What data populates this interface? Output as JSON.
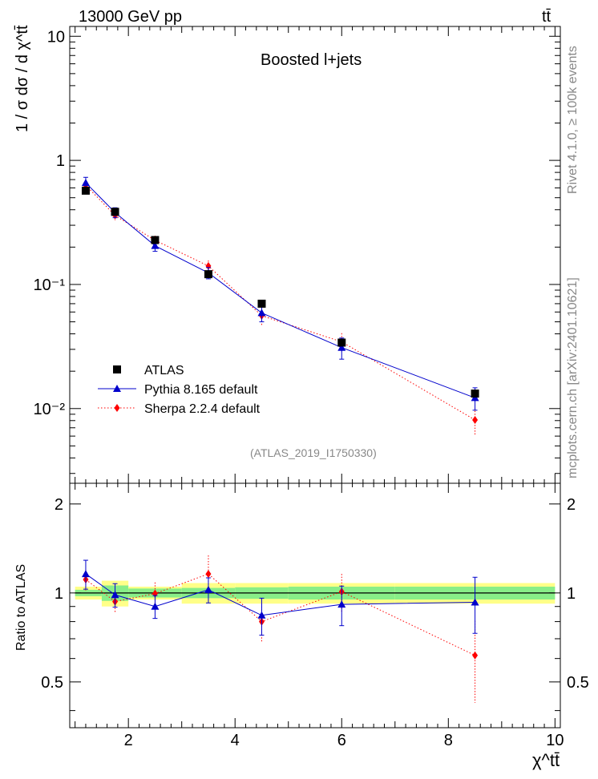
{
  "header": {
    "energy_label": "13000 GeV pp",
    "process_label": "tt̄",
    "rivet_label": "Rivet 4.1.0, ≥ 100k events",
    "mcplots_label": "mcplots.cern.ch [arXiv:2401.10621]",
    "analysis_id": "(ATLAS_2019_I1750330)",
    "plot_title": "Boosted l+jets"
  },
  "chart_data": [
    {
      "type": "scatter",
      "title": "Boosted l+jets",
      "xlabel": "χ^tt̄",
      "ylabel": "1 / σ dσ / d χ^tt̄",
      "xlim": [
        0.9,
        10.1
      ],
      "ylim": [
        0.0025,
        12
      ],
      "yscale": "log",
      "y_tick_labels": [
        "10",
        "1",
        "10⁻¹",
        "10⁻²"
      ],
      "legend": [
        {
          "name": "ATLAS",
          "color": "#000000",
          "marker": "square"
        },
        {
          "name": "Pythia 8.165 default",
          "color": "#0000cc",
          "marker": "triangle"
        },
        {
          "name": "Sherpa 2.2.4 default",
          "color": "#ff0000",
          "marker": "diamond"
        }
      ],
      "legend_position": "bottom-left",
      "series": [
        {
          "name": "ATLAS",
          "x": [
            1.2,
            1.75,
            2.5,
            3.5,
            4.5,
            6.0,
            8.5
          ],
          "y": [
            0.57,
            0.385,
            0.228,
            0.121,
            0.07,
            0.034,
            0.0132
          ],
          "xerr": [
            0.2,
            0.25,
            0.5,
            0.5,
            0.5,
            1.0,
            1.5
          ]
        },
        {
          "name": "Pythia 8.165 default",
          "x": [
            1.2,
            1.75,
            2.5,
            3.5,
            4.5,
            6.0,
            8.5
          ],
          "y": [
            0.66,
            0.38,
            0.205,
            0.124,
            0.059,
            0.031,
            0.0122
          ],
          "yerr": [
            0.07,
            0.035,
            0.02,
            0.013,
            0.009,
            0.006,
            0.0025
          ]
        },
        {
          "name": "Sherpa 2.2.4 default",
          "x": [
            1.2,
            1.75,
            2.5,
            3.5,
            4.5,
            6.0,
            8.5
          ],
          "y": [
            0.63,
            0.36,
            0.227,
            0.141,
            0.056,
            0.0345,
            0.0081
          ],
          "yerr": [
            0.05,
            0.03,
            0.02,
            0.015,
            0.01,
            0.006,
            0.002
          ]
        }
      ]
    },
    {
      "type": "scatter",
      "title": "",
      "xlabel": "χ^tt̄",
      "ylabel": "Ratio to ATLAS",
      "xlim": [
        0.9,
        10.1
      ],
      "ylim": [
        0.35,
        2.35
      ],
      "x_tick_labels": [
        "2",
        "4",
        "6",
        "8",
        "10"
      ],
      "y_tick_labels": [
        "2",
        "1",
        "0.5"
      ],
      "bands": {
        "bin_edges": [
          1.0,
          1.5,
          2.0,
          3.0,
          4.0,
          5.0,
          7.0,
          10.0
        ],
        "stat": [
          0.025,
          0.06,
          0.035,
          0.04,
          0.045,
          0.05,
          0.05
        ],
        "total": [
          0.05,
          0.1,
          0.05,
          0.08,
          0.08,
          0.08,
          0.08
        ]
      },
      "series": [
        {
          "name": "Pythia 8.165 default",
          "x": [
            1.2,
            1.75,
            2.5,
            3.5,
            4.5,
            6.0,
            8.5
          ],
          "y": [
            1.16,
            0.985,
            0.9,
            1.025,
            0.84,
            0.915,
            0.93
          ],
          "yerr": [
            0.13,
            0.09,
            0.08,
            0.1,
            0.12,
            0.14,
            0.2
          ]
        },
        {
          "name": "Sherpa 2.2.4 default",
          "x": [
            1.2,
            1.75,
            2.5,
            3.5,
            4.5,
            6.0,
            8.5
          ],
          "y": [
            1.11,
            0.935,
            0.995,
            1.16,
            0.8,
            1.01,
            0.615
          ],
          "yerr": [
            0.09,
            0.08,
            0.09,
            0.18,
            0.12,
            0.15,
            0.19
          ]
        }
      ]
    }
  ]
}
